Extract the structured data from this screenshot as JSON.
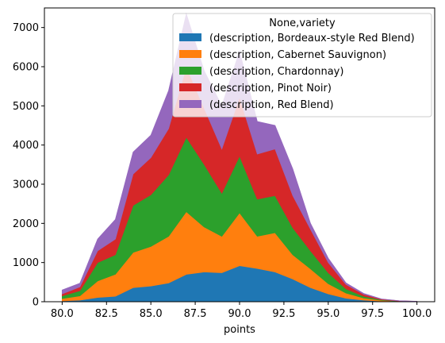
{
  "chart_data": {
    "type": "area",
    "stacked": true,
    "xlabel": "points",
    "ylabel": "",
    "xlim": [
      79,
      101
    ],
    "ylim": [
      0,
      7500
    ],
    "xticks": [
      80.0,
      82.5,
      85.0,
      87.5,
      90.0,
      92.5,
      95.0,
      97.5,
      100.0
    ],
    "xtick_labels": [
      "80.0",
      "82.5",
      "85.0",
      "87.5",
      "90.0",
      "92.5",
      "95.0",
      "97.5",
      "100.0"
    ],
    "yticks": [
      0,
      1000,
      2000,
      3000,
      4000,
      5000,
      6000,
      7000
    ],
    "ytick_labels": [
      "0",
      "1000",
      "2000",
      "3000",
      "4000",
      "5000",
      "6000",
      "7000"
    ],
    "grid": false,
    "legend": {
      "title": "None,variety",
      "placement": "top-right"
    },
    "x": [
      80,
      81,
      82,
      83,
      84,
      85,
      86,
      87,
      88,
      89,
      90,
      91,
      92,
      93,
      94,
      95,
      96,
      97,
      98,
      99,
      100
    ],
    "series": [
      {
        "name": "(description, Bordeaux-style Red Blend)",
        "color": "#1f77b4",
        "values": [
          20,
          40,
          110,
          140,
          360,
          400,
          480,
          700,
          760,
          740,
          920,
          850,
          760,
          580,
          360,
          200,
          90,
          40,
          15,
          5,
          2
        ]
      },
      {
        "name": "(description, Cabernet Sauvignon)",
        "color": "#ff7f0e",
        "values": [
          60,
          110,
          420,
          560,
          900,
          1010,
          1190,
          1600,
          1150,
          930,
          1350,
          820,
          1000,
          620,
          480,
          260,
          130,
          55,
          20,
          6,
          2
        ]
      },
      {
        "name": "(description, Chardonnay)",
        "color": "#2ca02c",
        "values": [
          70,
          130,
          470,
          500,
          1200,
          1320,
          1570,
          1900,
          1600,
          1100,
          1450,
          950,
          950,
          690,
          460,
          280,
          110,
          45,
          15,
          5,
          2
        ]
      },
      {
        "name": "(description, Pinot Noir)",
        "color": "#d62728",
        "values": [
          50,
          100,
          300,
          400,
          800,
          950,
          1180,
          1800,
          1440,
          1130,
          1500,
          1150,
          1190,
          820,
          550,
          260,
          110,
          50,
          15,
          6,
          2
        ]
      },
      {
        "name": "(description, Red Blend)",
        "color": "#9467bd",
        "values": [
          100,
          90,
          300,
          500,
          560,
          570,
          970,
          1350,
          950,
          1100,
          1180,
          830,
          600,
          680,
          150,
          110,
          40,
          20,
          5,
          3,
          1
        ]
      }
    ]
  }
}
